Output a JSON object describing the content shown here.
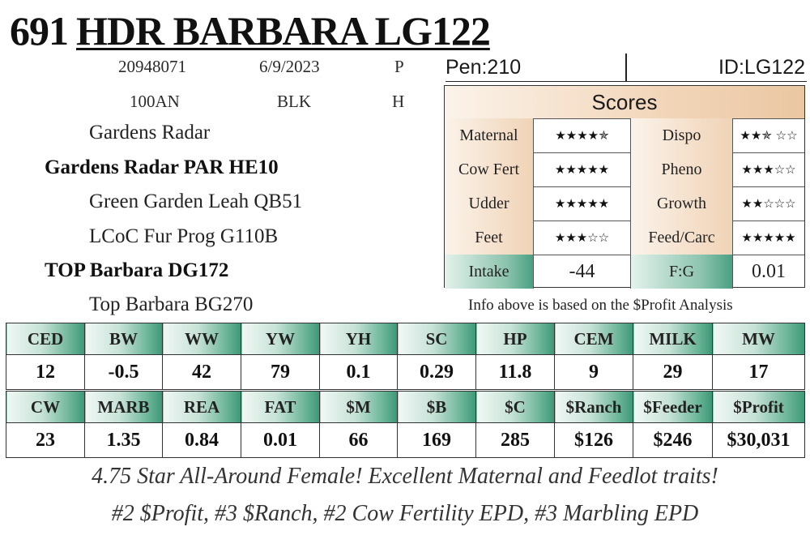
{
  "header": {
    "lot_number": "691",
    "animal_name": "HDR BARBARA LG122"
  },
  "info": {
    "registration": "20948071",
    "birth_date": "6/9/2023",
    "code_p": "P",
    "breed_code": "100AN",
    "color": "BLK",
    "code_h": "H"
  },
  "pedigree": {
    "sire_sire": "Gardens Radar",
    "sire": "Gardens Radar PAR HE10",
    "sire_dam": "Green Garden Leah QB51",
    "dam_sire": "LCoC Fur Prog G110B",
    "dam": "TOP Barbara DG172",
    "dam_dam": "Top Barbara BG270"
  },
  "pen_info": {
    "pen": "Pen:210",
    "id": "ID:LG122"
  },
  "scores": {
    "title": "Scores",
    "rows": [
      {
        "label1": "Maternal",
        "stars1": "★★★★✯",
        "rating1": 4.75,
        "label2": "Dispo",
        "stars2": "★★✯ ☆☆",
        "rating2": 2.5
      },
      {
        "label1": "Cow Fert",
        "stars1": "★★★★★",
        "rating1": 5,
        "label2": "Pheno",
        "stars2": "★★★☆☆",
        "rating2": 3
      },
      {
        "label1": "Udder",
        "stars1": "★★★★★",
        "rating1": 5,
        "label2": "Growth",
        "stars2": "★★☆☆☆",
        "rating2": 2
      },
      {
        "label1": "Feet",
        "stars1": "★★★☆☆",
        "rating1": 3,
        "label2": "Feed/Carc",
        "stars2": "★★★★★",
        "rating2": 5
      }
    ],
    "intake_label": "Intake",
    "intake_value": "-44",
    "fg_label": "F:G",
    "fg_value": "0.01"
  },
  "info_note": "Info above is based on the $Profit Analysis",
  "epd_table_1": {
    "headers": [
      "CED",
      "BW",
      "WW",
      "YW",
      "YH",
      "SC",
      "HP",
      "CEM",
      "MILK",
      "MW"
    ],
    "values": [
      "12",
      "-0.5",
      "42",
      "79",
      "0.1",
      "0.29",
      "11.8",
      "9",
      "29",
      "17"
    ]
  },
  "epd_table_2": {
    "headers": [
      "CW",
      "MARB",
      "REA",
      "FAT",
      "$M",
      "$B",
      "$C",
      "$Ranch",
      "$Feeder",
      "$Profit"
    ],
    "values": [
      "23",
      "1.35",
      "0.84",
      "0.01",
      "66",
      "169",
      "285",
      "$126",
      "$246",
      "$30,031"
    ]
  },
  "notes": {
    "line1": "4.75 Star All-Around Female! Excellent Maternal and Feedlot traits!",
    "line2": "#2 $Profit, #3 $Ranch, #2 Cow Fertility EPD, #3 Marbling EPD"
  },
  "colors": {
    "teal_accent": "#3d9877",
    "peach_accent": "#eac7a2"
  }
}
